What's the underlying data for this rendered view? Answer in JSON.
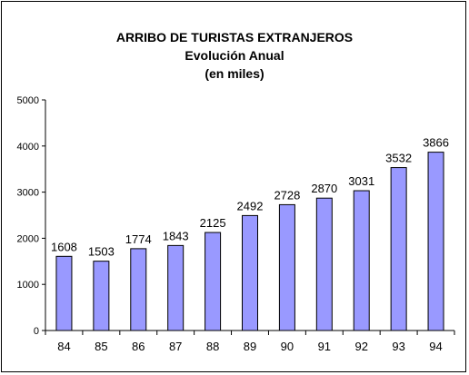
{
  "chart_data": {
    "type": "bar",
    "title": "ARRIBO DE TURISTAS EXTRANJEROS",
    "subtitle": "Evolución Anual",
    "subtitle2": "(en miles)",
    "categories": [
      "84",
      "85",
      "86",
      "87",
      "88",
      "89",
      "90",
      "91",
      "92",
      "93",
      "94"
    ],
    "values": [
      1608,
      1503,
      1774,
      1843,
      2125,
      2492,
      2728,
      2870,
      3031,
      3532,
      3866
    ],
    "ylim": [
      0,
      5000
    ],
    "yticks": [
      0,
      1000,
      2000,
      3000,
      4000,
      5000
    ],
    "grid": false,
    "legend": "none",
    "bar_color": "#9999ff",
    "bar_edge_color": "#000000"
  }
}
